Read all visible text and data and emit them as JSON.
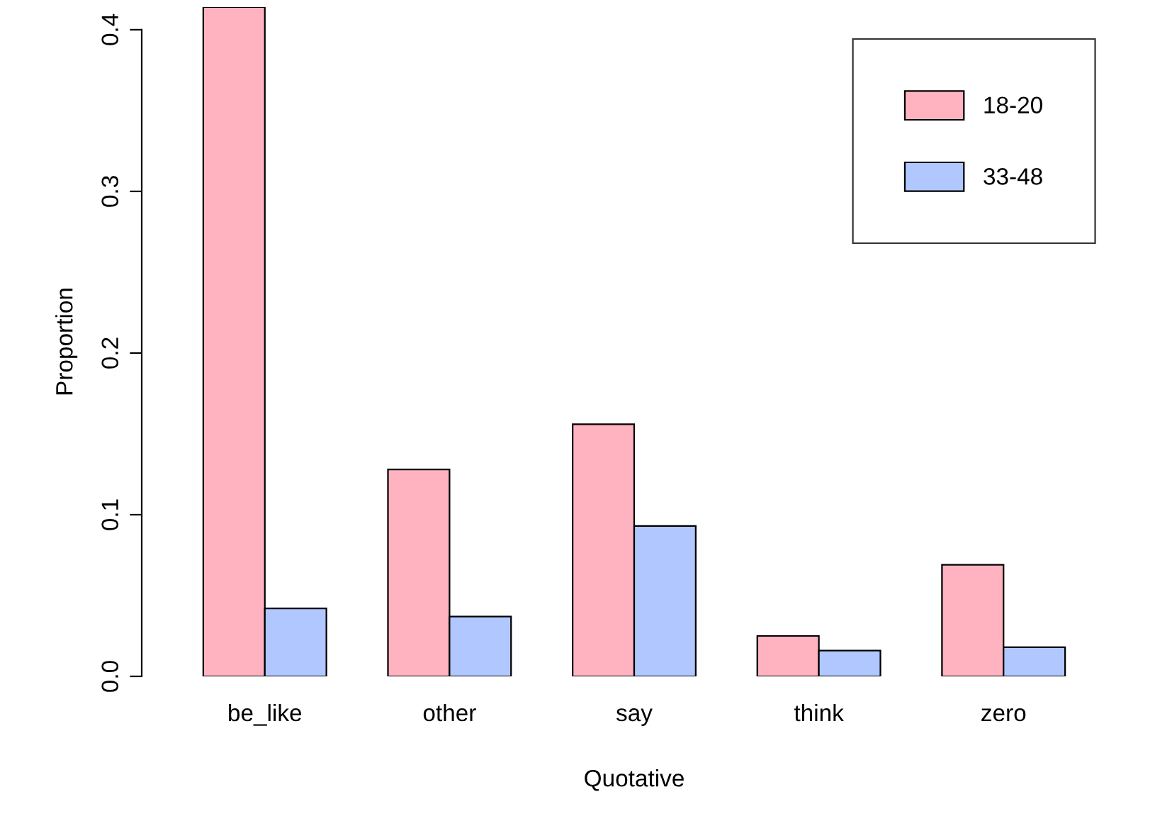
{
  "chart_data": {
    "type": "bar",
    "xlabel": "Quotative",
    "ylabel": "Proportion",
    "categories": [
      "be_like",
      "other",
      "say",
      "think",
      "zero"
    ],
    "series": [
      {
        "name": "18-20",
        "color": "#ffb3c1",
        "values": [
          0.414,
          0.128,
          0.156,
          0.025,
          0.069
        ]
      },
      {
        "name": "33-48",
        "color": "#b0c8ff",
        "values": [
          0.042,
          0.037,
          0.093,
          0.016,
          0.018
        ]
      }
    ],
    "ylim": [
      0,
      0.414
    ],
    "yticks": [
      {
        "value": 0,
        "label": "0.0"
      },
      0.1,
      0.2,
      0.3,
      0.4
    ],
    "grid": false,
    "legend": "top right"
  }
}
